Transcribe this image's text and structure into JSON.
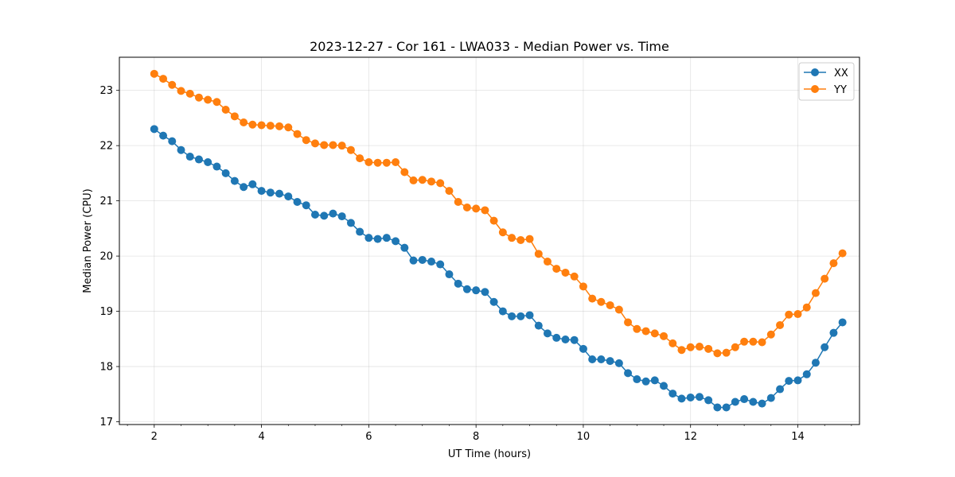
{
  "chart_data": {
    "type": "line",
    "title": "2023-12-27 - Cor 161 - LWA033 - Median Power vs. Time",
    "xlabel": "UT Time (hours)",
    "ylabel": "Median Power (CPU)",
    "xlim": [
      1.35,
      15.15
    ],
    "ylim": [
      16.95,
      23.6
    ],
    "xticks": [
      2,
      4,
      6,
      8,
      10,
      12,
      14
    ],
    "xtick_labels": [
      "2",
      "4",
      "6",
      "8",
      "10",
      "12",
      "14"
    ],
    "yticks": [
      17,
      18,
      19,
      20,
      21,
      22,
      23
    ],
    "ytick_labels": [
      "17",
      "18",
      "19",
      "20",
      "21",
      "22",
      "23"
    ],
    "grid": true,
    "legend_position": "top-right",
    "x": [
      2.0,
      2.167,
      2.333,
      2.5,
      2.667,
      2.833,
      3.0,
      3.167,
      3.333,
      3.5,
      3.667,
      3.833,
      4.0,
      4.167,
      4.333,
      4.5,
      4.667,
      4.833,
      5.0,
      5.167,
      5.333,
      5.5,
      5.667,
      5.833,
      6.0,
      6.167,
      6.333,
      6.5,
      6.667,
      6.833,
      7.0,
      7.167,
      7.333,
      7.5,
      7.667,
      7.833,
      8.0,
      8.167,
      8.333,
      8.5,
      8.667,
      8.833,
      9.0,
      9.167,
      9.333,
      9.5,
      9.667,
      9.833,
      10.0,
      10.167,
      10.333,
      10.5,
      10.667,
      10.833,
      11.0,
      11.167,
      11.333,
      11.5,
      11.667,
      11.833,
      12.0,
      12.167,
      12.333,
      12.5,
      12.667,
      12.833,
      13.0,
      13.167,
      13.333,
      13.5,
      13.667,
      13.833,
      14.0,
      14.167,
      14.333,
      14.5,
      14.667,
      14.833
    ],
    "series": [
      {
        "name": "XX",
        "color": "#1f77b4",
        "values": [
          22.3,
          22.18,
          22.08,
          21.92,
          21.8,
          21.75,
          21.7,
          21.62,
          21.5,
          21.36,
          21.25,
          21.3,
          21.18,
          21.15,
          21.13,
          21.08,
          20.98,
          20.92,
          20.75,
          20.73,
          20.77,
          20.72,
          20.6,
          20.44,
          20.33,
          20.31,
          20.33,
          20.27,
          20.15,
          19.92,
          19.93,
          19.9,
          19.85,
          19.67,
          19.5,
          19.4,
          19.38,
          19.35,
          19.17,
          19.0,
          18.91,
          18.91,
          18.93,
          18.74,
          18.6,
          18.52,
          18.49,
          18.48,
          18.32,
          18.13,
          18.13,
          18.1,
          18.06,
          17.88,
          17.77,
          17.73,
          17.75,
          17.65,
          17.51,
          17.42,
          17.44,
          17.45,
          17.39,
          17.26,
          17.26,
          17.36,
          17.41,
          17.36,
          17.33,
          17.43,
          17.59,
          17.74,
          17.75,
          17.86,
          18.07,
          18.35,
          18.61,
          18.8
        ]
      },
      {
        "name": "YY",
        "color": "#ff7f0e",
        "values": [
          23.3,
          23.21,
          23.1,
          22.99,
          22.94,
          22.87,
          22.83,
          22.79,
          22.65,
          22.53,
          22.42,
          22.38,
          22.37,
          22.36,
          22.35,
          22.33,
          22.21,
          22.1,
          22.04,
          22.01,
          22.01,
          22.0,
          21.92,
          21.77,
          21.7,
          21.69,
          21.69,
          21.7,
          21.52,
          21.37,
          21.38,
          21.35,
          21.32,
          21.18,
          20.98,
          20.88,
          20.86,
          20.83,
          20.64,
          20.43,
          20.33,
          20.29,
          20.31,
          20.04,
          19.9,
          19.77,
          19.7,
          19.63,
          19.45,
          19.23,
          19.17,
          19.11,
          19.03,
          18.8,
          18.68,
          18.64,
          18.6,
          18.55,
          18.42,
          18.3,
          18.35,
          18.36,
          18.32,
          18.24,
          18.25,
          18.35,
          18.45,
          18.45,
          18.44,
          18.58,
          18.75,
          18.94,
          18.95,
          19.07,
          19.33,
          19.59,
          19.87,
          20.05
        ]
      }
    ]
  }
}
